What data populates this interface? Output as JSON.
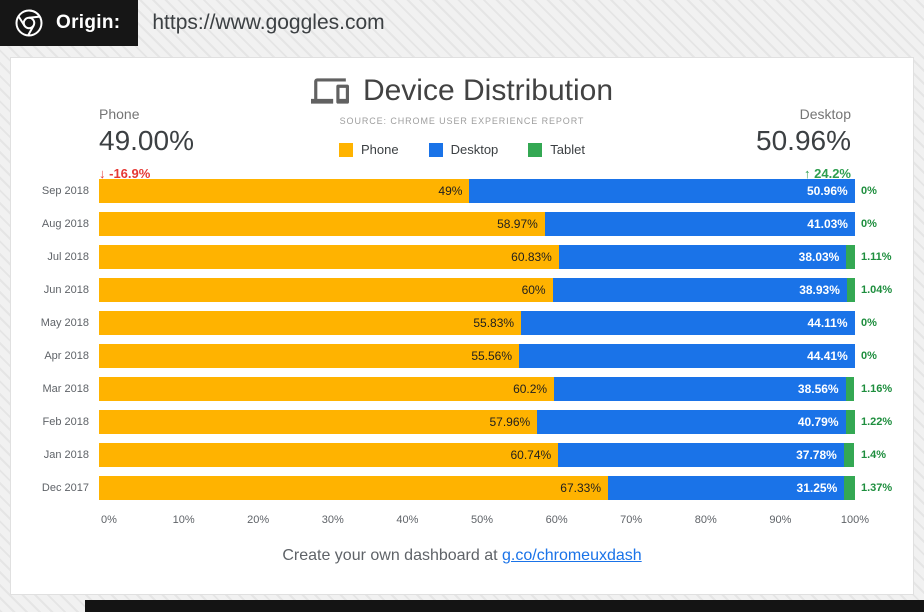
{
  "top_bar": {
    "origin_label": "Origin:",
    "origin_url": "https://www.goggles.com"
  },
  "card": {
    "title": "Device Distribution",
    "subtitle": "SOURCE: CHROME USER EXPERIENCE REPORT",
    "stats": {
      "left": {
        "label": "Phone",
        "value": "49.00%",
        "arrow": "↓",
        "delta": "-16.9%"
      },
      "right": {
        "label": "Desktop",
        "value": "50.96%",
        "arrow": "↑",
        "delta": "24.2%"
      }
    },
    "footer": {
      "text": "Create your own dashboard at",
      "link_text": "g.co/chromeuxdash"
    }
  },
  "legend": {
    "items": [
      {
        "label": "Phone",
        "color": "#FFB300"
      },
      {
        "label": "Desktop",
        "color": "#1A73E8"
      },
      {
        "label": "Tablet",
        "color": "#34A853"
      }
    ]
  },
  "chart_data": {
    "type": "bar",
    "stacked": true,
    "orientation": "horizontal",
    "title": "Device Distribution",
    "subtitle": "SOURCE: CHROME USER EXPERIENCE REPORT",
    "categories": [
      "Sep 2018",
      "Aug 2018",
      "Jul 2018",
      "Jun 2018",
      "May 2018",
      "Apr 2018",
      "Mar 2018",
      "Feb 2018",
      "Jan 2018",
      "Dec 2017"
    ],
    "series": [
      {
        "name": "Phone",
        "color": "#FFB300",
        "values": [
          49,
          58.97,
          60.83,
          60,
          55.83,
          55.56,
          60.2,
          57.96,
          60.74,
          67.33
        ],
        "labels": [
          "49%",
          "58.97%",
          "60.83%",
          "60%",
          "55.83%",
          "55.56%",
          "60.2%",
          "57.96%",
          "60.74%",
          "67.33%"
        ]
      },
      {
        "name": "Desktop",
        "color": "#1A73E8",
        "values": [
          50.96,
          41.03,
          38.03,
          38.93,
          44.11,
          44.41,
          38.56,
          40.79,
          37.78,
          31.25
        ],
        "labels": [
          "50.96%",
          "41.03%",
          "38.03%",
          "38.93%",
          "44.11%",
          "44.41%",
          "38.56%",
          "40.79%",
          "37.78%",
          "31.25%"
        ]
      },
      {
        "name": "Tablet",
        "color": "#34A853",
        "values": [
          0,
          0,
          1.11,
          1.04,
          0,
          0,
          1.16,
          1.22,
          1.4,
          1.37
        ],
        "labels": [
          "0%",
          "0%",
          "1.11%",
          "1.04%",
          "0%",
          "0%",
          "1.16%",
          "1.22%",
          "1.4%",
          "1.37%"
        ]
      }
    ],
    "xlim": [
      0,
      100
    ],
    "x_ticks": [
      "0%",
      "10%",
      "20%",
      "30%",
      "40%",
      "50%",
      "60%",
      "70%",
      "80%",
      "90%",
      "100%"
    ],
    "legend_position": "top",
    "grid": false
  }
}
